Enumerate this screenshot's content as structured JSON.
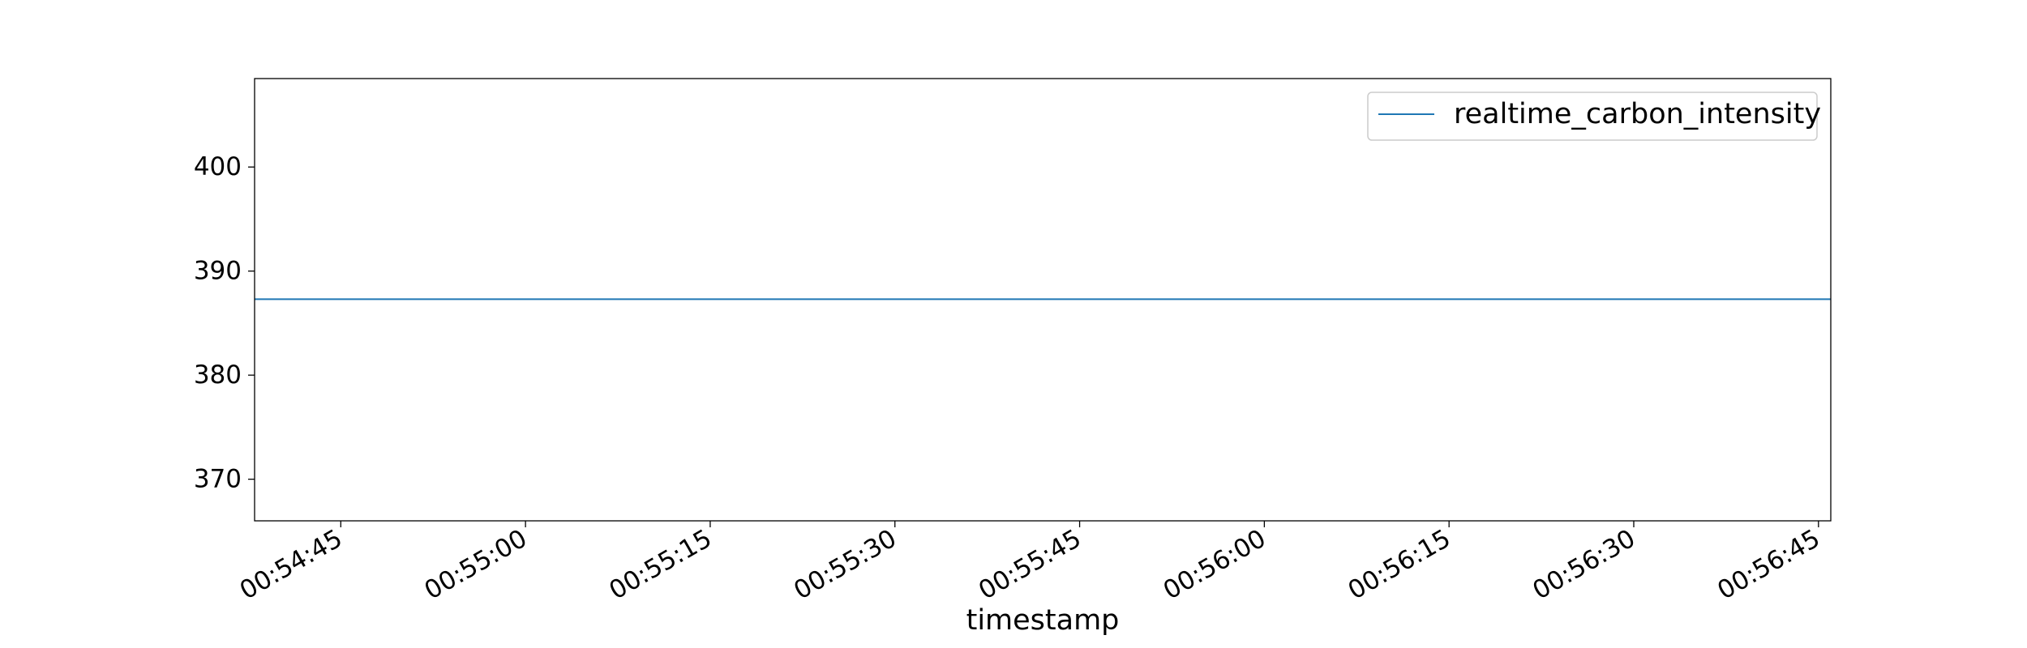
{
  "chart_data": {
    "type": "line",
    "title": "",
    "xlabel": "timestamp",
    "ylabel": "",
    "x_ticks": [
      "00:54:45",
      "00:55:00",
      "00:55:15",
      "00:55:30",
      "00:55:45",
      "00:56:00",
      "00:56:15",
      "00:56:30",
      "00:56:45"
    ],
    "xlim": [
      "00:54:38",
      "00:56:46"
    ],
    "y_ticks": [
      370,
      380,
      390,
      400
    ],
    "ylim": [
      366,
      408.5
    ],
    "grid": false,
    "legend_position": "upper right",
    "series": [
      {
        "name": "realtime_carbon_intensity",
        "color": "#1f77b4",
        "x": [
          "00:54:38",
          "00:56:46"
        ],
        "y": [
          387.3,
          387.3
        ]
      }
    ]
  }
}
